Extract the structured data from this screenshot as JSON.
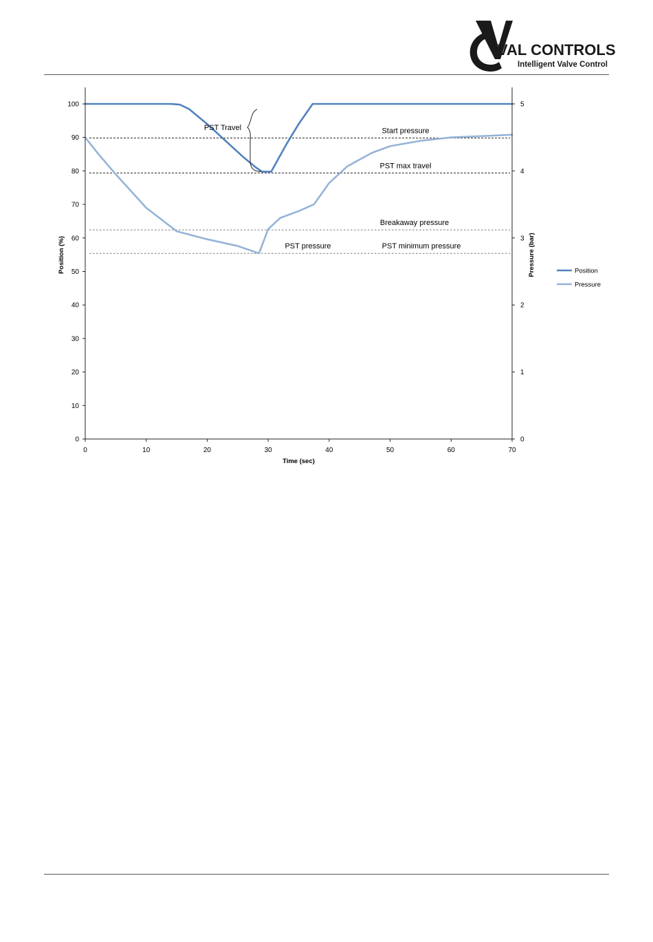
{
  "header": {
    "brand_name": "VAL CONTROLS",
    "brand_tagline": "Intelligent Valve Control"
  },
  "colors": {
    "position": "#4f81bd",
    "pressure": "#95b3d7",
    "brand": "#1a1a1a"
  },
  "chart_data": {
    "type": "line",
    "xlabel": "Time (sec)",
    "ylabel": "Position (%)",
    "y2label": "Pressure (bar)",
    "xlim": [
      0,
      70
    ],
    "ylim": [
      0,
      100
    ],
    "y2lim": [
      0,
      5
    ],
    "xticks": [
      0,
      10,
      20,
      30,
      40,
      50,
      60,
      70
    ],
    "yticks": [
      0,
      10,
      20,
      30,
      40,
      50,
      60,
      70,
      80,
      90,
      100
    ],
    "y2ticks": [
      0,
      1,
      2,
      3,
      4,
      5
    ],
    "grid": false,
    "legend_position": "right",
    "series": [
      {
        "name": "Position",
        "axis": "left",
        "x": [
          0,
          14,
          15.5,
          17,
          20,
          23,
          26,
          28,
          29,
          30.5,
          33,
          35,
          37.3,
          50,
          70
        ],
        "y": [
          100,
          100,
          99.8,
          98.5,
          94,
          89,
          84,
          81,
          79.8,
          79.8,
          88,
          94,
          100,
          100,
          100
        ]
      },
      {
        "name": "Pressure",
        "axis": "right",
        "x": [
          0,
          2,
          5,
          10,
          15,
          20,
          25,
          28.5,
          30,
          32,
          35,
          37.5,
          40,
          43,
          47,
          50,
          55,
          60,
          65,
          70
        ],
        "y": [
          4.5,
          4.27,
          3.95,
          3.45,
          3.1,
          2.98,
          2.88,
          2.77,
          3.13,
          3.3,
          3.4,
          3.5,
          3.82,
          4.07,
          4.27,
          4.37,
          4.45,
          4.5,
          4.52,
          4.54
        ]
      }
    ],
    "reference_lines": [
      {
        "axis": "right",
        "value": 4.49,
        "label": "Start pressure",
        "style": "dashed-dark"
      },
      {
        "axis": "right",
        "value": 3.97,
        "label": "PST max travel",
        "style": "dashed-dark"
      },
      {
        "axis": "right",
        "value": 3.12,
        "label": "Breakaway pressure",
        "style": "dashed-light"
      },
      {
        "axis": "right",
        "value": 2.77,
        "label": "PST minimum pressure",
        "style": "dashed-light"
      }
    ],
    "annotations": [
      {
        "label": "PST Travel",
        "x": 27,
        "y_from": 100,
        "y_to": 79.8
      },
      {
        "label": "PST pressure",
        "x": 28.5,
        "y2": 2.77
      }
    ]
  }
}
